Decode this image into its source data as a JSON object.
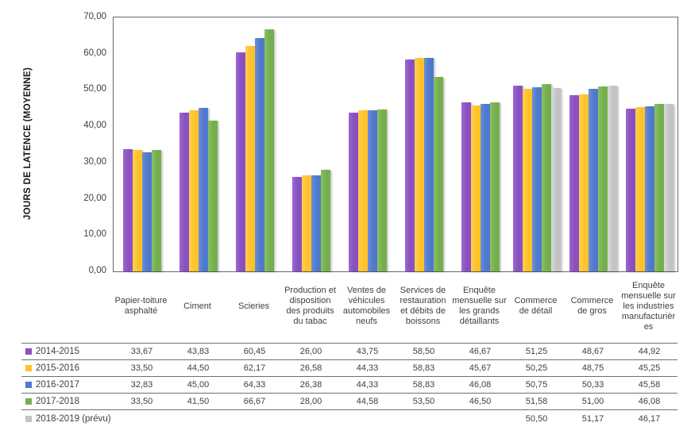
{
  "chart_data": {
    "type": "bar",
    "title": "",
    "xlabel": "",
    "ylabel": "JOURS DE LATENCE (MOYENNE)",
    "ylim": [
      0,
      70
    ],
    "ytick_step": 10,
    "ytick_labels": [
      "70,00",
      "60,00",
      "50,00",
      "40,00",
      "30,00",
      "20,00",
      "10,00",
      "0,00"
    ],
    "grid": false,
    "decimal_separator": ",",
    "legend_position": "table-left",
    "plot_border_color": "#696969",
    "categories": [
      "Papier-toiture asphalté",
      "Ciment",
      "Scieries",
      "Production et disposition des produits du tabac",
      "Ventes de véhicules automobiles neufs",
      "Services de restauration et débits de boissons",
      "Enquête mensuelle sur les grands détaillants",
      "Commerce de détail",
      "Commerce de gros",
      "Enquête mensuelle sur les industries manufacturières"
    ],
    "series": [
      {
        "name": "2014-2015",
        "color": "#8A50C2",
        "color_light": "#9B68CE",
        "values": [
          33.67,
          43.83,
          60.45,
          26.0,
          43.75,
          58.5,
          46.67,
          51.25,
          48.67,
          44.92
        ]
      },
      {
        "name": "2015-2016",
        "color": "#FFC327",
        "color_light": "#FFCF55",
        "values": [
          33.5,
          44.5,
          62.17,
          26.58,
          44.33,
          58.83,
          45.67,
          50.25,
          48.75,
          45.25
        ]
      },
      {
        "name": "2016-2017",
        "color": "#4E79CD",
        "color_light": "#6C8FD9",
        "values": [
          32.83,
          45.0,
          64.33,
          26.38,
          44.33,
          58.83,
          46.08,
          50.75,
          50.33,
          45.58
        ]
      },
      {
        "name": "2017-2018",
        "color": "#74AF4D",
        "color_light": "#8CC065",
        "values": [
          33.5,
          41.5,
          66.67,
          28.0,
          44.58,
          53.5,
          46.5,
          51.58,
          51.0,
          46.08
        ]
      },
      {
        "name": "2018-2019 (prévu)",
        "color": "#C3C3C6",
        "color_light": "#DADADC",
        "values": [
          null,
          null,
          null,
          null,
          null,
          null,
          null,
          50.5,
          51.17,
          46.17
        ]
      }
    ]
  }
}
